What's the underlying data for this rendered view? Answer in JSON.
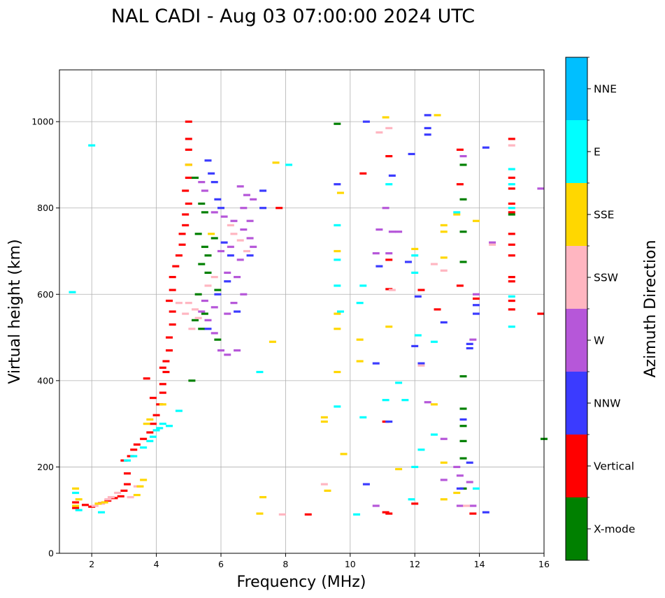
{
  "chart_data": {
    "type": "scatter",
    "title": "NAL CADI - Aug 03 07:00:00 2024 UTC",
    "xlabel": "Frequency (MHz)",
    "ylabel": "Virtual height (km)",
    "xlim": [
      1,
      16
    ],
    "ylim": [
      0,
      1120
    ],
    "xticks": [
      2,
      4,
      6,
      8,
      10,
      12,
      14,
      16
    ],
    "yticks": [
      0,
      200,
      400,
      600,
      800,
      1000
    ],
    "grid": true,
    "colorbar": {
      "label": "Azimuth Direction",
      "categories": [
        "X-mode",
        "Vertical",
        "NNW",
        "W",
        "SSW",
        "SSE",
        "E",
        "NNE"
      ],
      "colors": {
        "X-mode": "#008000",
        "Vertical": "#ff0000",
        "NNW": "#3b3bff",
        "W": "#b657d9",
        "SSW": "#ffb6c1",
        "SSE": "#ffd700",
        "E": "#00ffff",
        "NNE": "#00bfff"
      }
    },
    "series": [
      {
        "name": "Vertical",
        "points": [
          [
            1.5,
            105
          ],
          [
            1.5,
            118
          ],
          [
            1.8,
            112
          ],
          [
            2.0,
            108
          ],
          [
            2.3,
            116
          ],
          [
            2.5,
            122
          ],
          [
            2.7,
            128
          ],
          [
            2.9,
            132
          ],
          [
            3.0,
            145
          ],
          [
            3.1,
            160
          ],
          [
            3.1,
            185
          ],
          [
            3.0,
            215
          ],
          [
            3.2,
            225
          ],
          [
            3.3,
            240
          ],
          [
            3.4,
            252
          ],
          [
            3.6,
            265
          ],
          [
            3.8,
            280
          ],
          [
            3.9,
            300
          ],
          [
            4.0,
            320
          ],
          [
            4.1,
            345
          ],
          [
            4.2,
            372
          ],
          [
            4.2,
            392
          ],
          [
            4.3,
            420
          ],
          [
            4.3,
            445
          ],
          [
            4.4,
            470
          ],
          [
            4.4,
            500
          ],
          [
            4.5,
            530
          ],
          [
            4.5,
            560
          ],
          [
            4.4,
            585
          ],
          [
            4.5,
            610
          ],
          [
            4.5,
            640
          ],
          [
            4.6,
            665
          ],
          [
            4.7,
            690
          ],
          [
            4.8,
            715
          ],
          [
            4.8,
            740
          ],
          [
            4.9,
            760
          ],
          [
            4.9,
            785
          ],
          [
            5.0,
            810
          ],
          [
            4.9,
            840
          ],
          [
            5.0,
            870
          ],
          [
            5.0,
            900
          ],
          [
            5.0,
            935
          ],
          [
            5.0,
            960
          ],
          [
            5.0,
            1000
          ],
          [
            3.7,
            405
          ],
          [
            3.9,
            360
          ],
          [
            4.2,
            430
          ],
          [
            8.7,
            90
          ],
          [
            10.4,
            880
          ],
          [
            11.2,
            920
          ],
          [
            11.2,
            680
          ],
          [
            11.2,
            612
          ],
          [
            11.1,
            305
          ],
          [
            11.1,
            95
          ],
          [
            12.0,
            115
          ],
          [
            12.7,
            565
          ],
          [
            13.4,
            935
          ],
          [
            13.4,
            855
          ],
          [
            13.4,
            620
          ],
          [
            13.9,
            590
          ],
          [
            15.0,
            960
          ],
          [
            15.0,
            870
          ],
          [
            15.0,
            845
          ],
          [
            15.0,
            810
          ],
          [
            15.0,
            790
          ],
          [
            15.0,
            740
          ],
          [
            15.0,
            715
          ],
          [
            15.0,
            690
          ],
          [
            15.0,
            640
          ],
          [
            15.0,
            630
          ],
          [
            15.0,
            585
          ],
          [
            15.0,
            565
          ],
          [
            15.9,
            555
          ],
          [
            12.2,
            610
          ],
          [
            11.2,
            92
          ],
          [
            13.8,
            92
          ],
          [
            7.8,
            800
          ]
        ]
      },
      {
        "name": "X-mode",
        "points": [
          [
            5.1,
            400
          ],
          [
            5.4,
            810
          ],
          [
            5.5,
            790
          ],
          [
            5.3,
            740
          ],
          [
            5.5,
            710
          ],
          [
            5.6,
            690
          ],
          [
            5.4,
            670
          ],
          [
            5.6,
            650
          ],
          [
            5.3,
            600
          ],
          [
            5.5,
            555
          ],
          [
            5.2,
            540
          ],
          [
            5.4,
            520
          ],
          [
            5.8,
            730
          ],
          [
            5.9,
            610
          ],
          [
            5.9,
            495
          ],
          [
            13.5,
            900
          ],
          [
            13.5,
            820
          ],
          [
            13.5,
            745
          ],
          [
            13.5,
            675
          ],
          [
            13.5,
            410
          ],
          [
            13.5,
            335
          ],
          [
            13.5,
            295
          ],
          [
            13.5,
            260
          ],
          [
            13.5,
            220
          ],
          [
            13.5,
            150
          ],
          [
            15.0,
            785
          ],
          [
            16.0,
            265
          ],
          [
            9.6,
            995
          ],
          [
            5.2,
            870
          ]
        ]
      },
      {
        "name": "NNW",
        "points": [
          [
            5.6,
            910
          ],
          [
            5.7,
            880
          ],
          [
            5.8,
            860
          ],
          [
            5.9,
            820
          ],
          [
            6.0,
            800
          ],
          [
            6.1,
            720
          ],
          [
            6.3,
            690
          ],
          [
            5.6,
            520
          ],
          [
            5.9,
            600
          ],
          [
            6.2,
            630
          ],
          [
            6.5,
            560
          ],
          [
            6.9,
            690
          ],
          [
            7.3,
            800
          ],
          [
            7.3,
            840
          ],
          [
            9.6,
            855
          ],
          [
            10.5,
            1000
          ],
          [
            10.8,
            440
          ],
          [
            10.9,
            665
          ],
          [
            11.2,
            305
          ],
          [
            11.3,
            875
          ],
          [
            11.9,
            925
          ],
          [
            12.0,
            480
          ],
          [
            12.1,
            595
          ],
          [
            12.2,
            440
          ],
          [
            12.4,
            1015
          ],
          [
            12.4,
            985
          ],
          [
            12.4,
            970
          ],
          [
            12.9,
            535
          ],
          [
            13.4,
            150
          ],
          [
            13.5,
            310
          ],
          [
            13.7,
            485
          ],
          [
            13.7,
            475
          ],
          [
            13.7,
            210
          ],
          [
            13.9,
            575
          ],
          [
            13.9,
            555
          ],
          [
            14.2,
            940
          ],
          [
            14.2,
            95
          ],
          [
            10.5,
            160
          ],
          [
            11.8,
            675
          ]
        ]
      },
      {
        "name": "W",
        "points": [
          [
            5.4,
            860
          ],
          [
            5.5,
            840
          ],
          [
            5.8,
            790
          ],
          [
            6.1,
            780
          ],
          [
            6.4,
            770
          ],
          [
            6.6,
            850
          ],
          [
            6.8,
            830
          ],
          [
            7.0,
            820
          ],
          [
            6.7,
            750
          ],
          [
            6.9,
            730
          ],
          [
            7.0,
            710
          ],
          [
            6.6,
            680
          ],
          [
            6.3,
            710
          ],
          [
            6.0,
            700
          ],
          [
            6.2,
            650
          ],
          [
            6.5,
            640
          ],
          [
            6.7,
            600
          ],
          [
            6.4,
            580
          ],
          [
            6.2,
            555
          ],
          [
            5.8,
            570
          ],
          [
            5.5,
            585
          ],
          [
            5.4,
            560
          ],
          [
            5.6,
            540
          ],
          [
            5.8,
            510
          ],
          [
            6.0,
            470
          ],
          [
            6.2,
            460
          ],
          [
            6.5,
            470
          ],
          [
            6.7,
            800
          ],
          [
            6.9,
            770
          ],
          [
            10.8,
            695
          ],
          [
            10.9,
            750
          ],
          [
            11.2,
            695
          ],
          [
            11.3,
            745
          ],
          [
            11.5,
            745
          ],
          [
            12.4,
            350
          ],
          [
            12.9,
            265
          ],
          [
            12.9,
            170
          ],
          [
            13.3,
            200
          ],
          [
            13.4,
            180
          ],
          [
            13.5,
            920
          ],
          [
            13.9,
            600
          ],
          [
            13.8,
            495
          ],
          [
            13.7,
            165
          ],
          [
            13.8,
            110
          ],
          [
            14.4,
            720
          ],
          [
            15.9,
            845
          ],
          [
            11.1,
            800
          ],
          [
            10.8,
            110
          ],
          [
            13.4,
            110
          ]
        ]
      },
      {
        "name": "SSW",
        "points": [
          [
            5.0,
            580
          ],
          [
            5.2,
            565
          ],
          [
            5.3,
            545
          ],
          [
            5.1,
            520
          ],
          [
            4.9,
            555
          ],
          [
            5.6,
            620
          ],
          [
            5.8,
            640
          ],
          [
            6.3,
            760
          ],
          [
            6.4,
            740
          ],
          [
            6.6,
            725
          ],
          [
            6.8,
            700
          ],
          [
            4.7,
            580
          ],
          [
            2.1,
            110
          ],
          [
            2.3,
            115
          ],
          [
            2.5,
            125
          ],
          [
            2.6,
            130
          ],
          [
            2.8,
            140
          ],
          [
            3.2,
            130
          ],
          [
            3.4,
            155
          ],
          [
            7.9,
            90
          ],
          [
            9.2,
            160
          ],
          [
            10.9,
            975
          ],
          [
            11.2,
            985
          ],
          [
            11.3,
            610
          ],
          [
            12.6,
            670
          ],
          [
            12.9,
            655
          ],
          [
            13.6,
            110
          ],
          [
            14.4,
            715
          ],
          [
            15.0,
            945
          ],
          [
            12.2,
            435
          ]
        ]
      },
      {
        "name": "SSE",
        "points": [
          [
            1.5,
            110
          ],
          [
            1.6,
            125
          ],
          [
            1.5,
            150
          ],
          [
            2.2,
            115
          ],
          [
            2.4,
            118
          ],
          [
            3.4,
            135
          ],
          [
            3.5,
            155
          ],
          [
            3.6,
            170
          ],
          [
            3.7,
            300
          ],
          [
            3.8,
            310
          ],
          [
            4.2,
            345
          ],
          [
            5.0,
            900
          ],
          [
            5.7,
            740
          ],
          [
            9.2,
            315
          ],
          [
            9.2,
            305
          ],
          [
            9.3,
            145
          ],
          [
            9.6,
            700
          ],
          [
            9.7,
            835
          ],
          [
            9.6,
            555
          ],
          [
            9.6,
            520
          ],
          [
            9.6,
            420
          ],
          [
            9.8,
            230
          ],
          [
            10.3,
            495
          ],
          [
            10.3,
            445
          ],
          [
            11.1,
            1010
          ],
          [
            11.2,
            525
          ],
          [
            12.0,
            705
          ],
          [
            12.6,
            345
          ],
          [
            12.7,
            1015
          ],
          [
            12.9,
            760
          ],
          [
            12.9,
            745
          ],
          [
            12.9,
            685
          ],
          [
            12.9,
            210
          ],
          [
            12.9,
            125
          ],
          [
            13.3,
            785
          ],
          [
            13.3,
            140
          ],
          [
            13.9,
            770
          ],
          [
            7.2,
            92
          ],
          [
            7.3,
            130
          ],
          [
            7.6,
            490
          ],
          [
            7.7,
            905
          ],
          [
            11.5,
            195
          ]
        ]
      },
      {
        "name": "E",
        "points": [
          [
            1.5,
            140
          ],
          [
            1.6,
            100
          ],
          [
            2.3,
            95
          ],
          [
            3.1,
            215
          ],
          [
            3.3,
            225
          ],
          [
            3.6,
            245
          ],
          [
            3.8,
            260
          ],
          [
            3.9,
            270
          ],
          [
            4.0,
            285
          ],
          [
            4.1,
            290
          ],
          [
            4.2,
            300
          ],
          [
            4.4,
            295
          ],
          [
            4.7,
            330
          ],
          [
            2.0,
            945
          ],
          [
            1.4,
            605
          ],
          [
            7.2,
            420
          ],
          [
            8.1,
            900
          ],
          [
            9.6,
            760
          ],
          [
            9.6,
            680
          ],
          [
            9.6,
            620
          ],
          [
            9.6,
            340
          ],
          [
            9.7,
            560
          ],
          [
            10.3,
            580
          ],
          [
            10.4,
            620
          ],
          [
            10.4,
            315
          ],
          [
            10.2,
            90
          ],
          [
            11.1,
            355
          ],
          [
            11.2,
            855
          ],
          [
            11.5,
            395
          ],
          [
            11.7,
            355
          ],
          [
            12.0,
            690
          ],
          [
            12.0,
            650
          ],
          [
            12.1,
            505
          ],
          [
            12.2,
            240
          ],
          [
            12.0,
            200
          ],
          [
            12.6,
            490
          ],
          [
            12.6,
            275
          ],
          [
            13.3,
            790
          ],
          [
            15.0,
            890
          ],
          [
            15.0,
            855
          ],
          [
            15.0,
            800
          ],
          [
            15.0,
            595
          ],
          [
            15.0,
            525
          ],
          [
            13.9,
            150
          ],
          [
            11.9,
            125
          ]
        ]
      },
      {
        "name": "NNE",
        "points": []
      }
    ]
  }
}
